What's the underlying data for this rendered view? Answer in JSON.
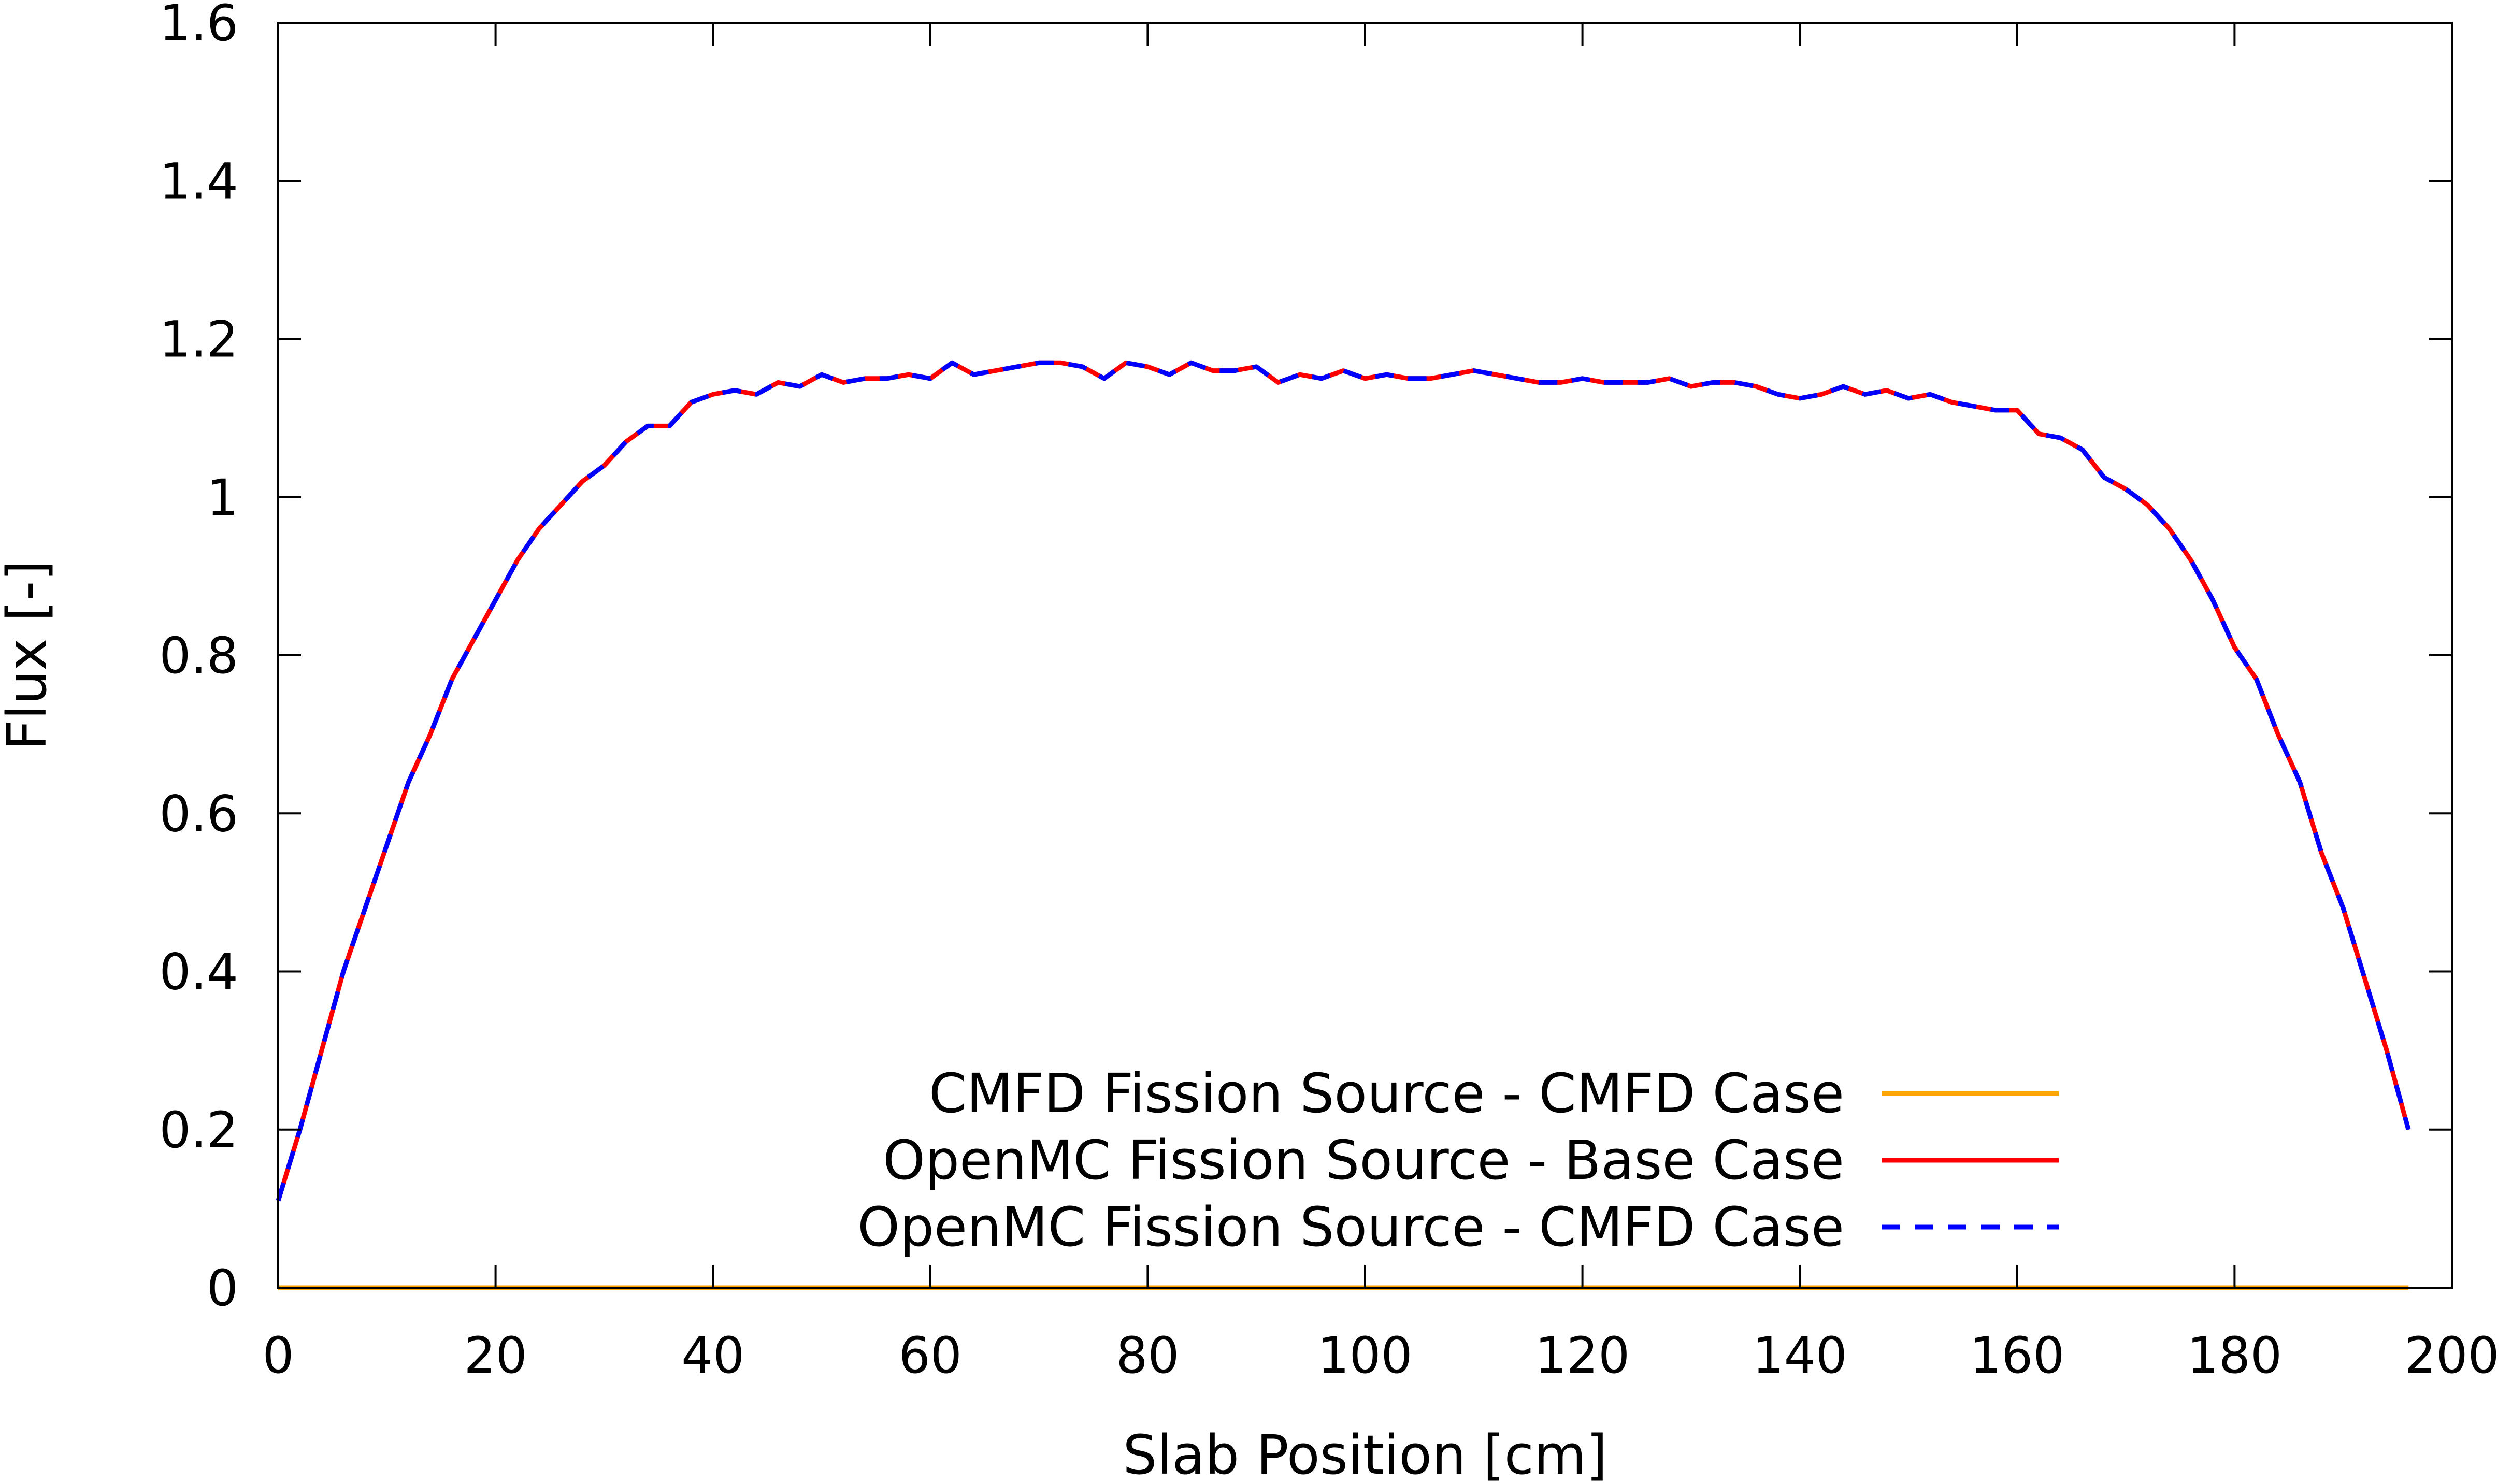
{
  "chart_data": {
    "type": "line",
    "title": "",
    "xlabel": "Slab Position [cm]",
    "ylabel": "Flux [-]",
    "xlim": [
      0,
      200
    ],
    "ylim": [
      0,
      1.6
    ],
    "xticks": [
      "0",
      "20",
      "40",
      "60",
      "80",
      "100",
      "120",
      "140",
      "160",
      "180",
      "200"
    ],
    "yticks": [
      "0",
      "0.2",
      "0.4",
      "0.6",
      "0.8",
      "1",
      "1.2",
      "1.4",
      "1.6"
    ],
    "grid": false,
    "legend_position": "bottom-right",
    "x": [
      0,
      2,
      4,
      6,
      8,
      10,
      12,
      14,
      16,
      18,
      20,
      22,
      24,
      26,
      28,
      30,
      32,
      34,
      36,
      38,
      40,
      42,
      44,
      46,
      48,
      50,
      52,
      54,
      56,
      58,
      60,
      62,
      64,
      66,
      68,
      70,
      72,
      74,
      76,
      78,
      80,
      82,
      84,
      86,
      88,
      90,
      92,
      94,
      96,
      98,
      100,
      102,
      104,
      106,
      108,
      110,
      112,
      114,
      116,
      118,
      120,
      122,
      124,
      126,
      128,
      130,
      132,
      134,
      136,
      138,
      140,
      142,
      144,
      146,
      148,
      150,
      152,
      154,
      156,
      158,
      160,
      162,
      164,
      166,
      168,
      170,
      172,
      174,
      176,
      178,
      180,
      182,
      184,
      186,
      188,
      190,
      192,
      194,
      196
    ],
    "series": [
      {
        "name": "CMFD Fission Source - CMFD Case",
        "color": "#ffa500",
        "dash": "solid",
        "values": [
          0,
          0,
          0,
          0,
          0,
          0,
          0,
          0,
          0,
          0,
          0,
          0,
          0,
          0,
          0,
          0,
          0,
          0,
          0,
          0,
          0,
          0,
          0,
          0,
          0,
          0,
          0,
          0,
          0,
          0,
          0,
          0,
          0,
          0,
          0,
          0,
          0,
          0,
          0,
          0,
          0,
          0,
          0,
          0,
          0,
          0,
          0,
          0,
          0,
          0,
          0,
          0,
          0,
          0,
          0,
          0,
          0,
          0,
          0,
          0,
          0,
          0,
          0,
          0,
          0,
          0,
          0,
          0,
          0,
          0,
          0,
          0,
          0,
          0,
          0,
          0,
          0,
          0,
          0,
          0,
          0,
          0,
          0,
          0,
          0,
          0,
          0,
          0,
          0,
          0,
          0,
          0,
          0,
          0,
          0,
          0,
          0,
          0,
          0
        ]
      },
      {
        "name": "OpenMC Fission Source - Base Case",
        "color": "#ff0000",
        "dash": "solid",
        "values": [
          0.11,
          0.2,
          0.3,
          0.4,
          0.48,
          0.56,
          0.64,
          0.7,
          0.77,
          0.82,
          0.87,
          0.92,
          0.96,
          0.99,
          1.02,
          1.04,
          1.07,
          1.09,
          1.09,
          1.12,
          1.13,
          1.135,
          1.13,
          1.145,
          1.14,
          1.155,
          1.145,
          1.15,
          1.15,
          1.155,
          1.15,
          1.17,
          1.155,
          1.16,
          1.165,
          1.17,
          1.17,
          1.165,
          1.15,
          1.17,
          1.165,
          1.155,
          1.17,
          1.16,
          1.16,
          1.165,
          1.145,
          1.155,
          1.15,
          1.16,
          1.15,
          1.155,
          1.15,
          1.15,
          1.155,
          1.16,
          1.155,
          1.15,
          1.145,
          1.145,
          1.15,
          1.145,
          1.145,
          1.145,
          1.15,
          1.14,
          1.145,
          1.145,
          1.14,
          1.13,
          1.125,
          1.13,
          1.14,
          1.13,
          1.135,
          1.125,
          1.13,
          1.12,
          1.115,
          1.11,
          1.11,
          1.08,
          1.075,
          1.06,
          1.025,
          1.01,
          0.99,
          0.96,
          0.92,
          0.87,
          0.81,
          0.77,
          0.7,
          0.64,
          0.55,
          0.48,
          0.39,
          0.3,
          0.2
        ]
      },
      {
        "name": "OpenMC Fission Source - CMFD Case",
        "color": "#0000ff",
        "dash": "dashed",
        "values": [
          0.11,
          0.2,
          0.3,
          0.4,
          0.48,
          0.56,
          0.64,
          0.7,
          0.77,
          0.82,
          0.87,
          0.92,
          0.96,
          0.99,
          1.02,
          1.04,
          1.07,
          1.09,
          1.09,
          1.12,
          1.13,
          1.135,
          1.13,
          1.145,
          1.14,
          1.155,
          1.145,
          1.15,
          1.15,
          1.155,
          1.15,
          1.17,
          1.155,
          1.16,
          1.165,
          1.17,
          1.17,
          1.165,
          1.15,
          1.17,
          1.165,
          1.155,
          1.17,
          1.16,
          1.16,
          1.165,
          1.145,
          1.155,
          1.15,
          1.16,
          1.15,
          1.155,
          1.15,
          1.15,
          1.155,
          1.16,
          1.155,
          1.15,
          1.145,
          1.145,
          1.15,
          1.145,
          1.145,
          1.145,
          1.15,
          1.14,
          1.145,
          1.145,
          1.14,
          1.13,
          1.125,
          1.13,
          1.14,
          1.13,
          1.135,
          1.125,
          1.13,
          1.12,
          1.115,
          1.11,
          1.11,
          1.08,
          1.075,
          1.06,
          1.025,
          1.01,
          0.99,
          0.96,
          0.92,
          0.87,
          0.81,
          0.77,
          0.7,
          0.64,
          0.55,
          0.48,
          0.39,
          0.3,
          0.2
        ]
      }
    ]
  }
}
